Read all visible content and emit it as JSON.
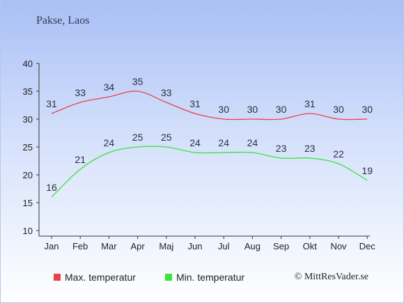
{
  "header": {
    "title": "Pakse, Laos"
  },
  "footer": {
    "copyright": "© MittResVader.se"
  },
  "chart_data": {
    "type": "line",
    "categories": [
      "Jan",
      "Feb",
      "Mar",
      "Apr",
      "Maj",
      "Jun",
      "Jul",
      "Aug",
      "Sep",
      "Okt",
      "Nov",
      "Dec"
    ],
    "ylim": [
      10,
      40
    ],
    "yticks": [
      10,
      15,
      20,
      25,
      30,
      35,
      40
    ],
    "grid": false,
    "legend_position": "bottom",
    "series": [
      {
        "name": "Max. temperatur",
        "color": "#e8434a",
        "values": [
          31,
          33,
          34,
          35,
          33,
          31,
          30,
          30,
          30,
          31,
          30,
          30
        ]
      },
      {
        "name": "Min. temperatur",
        "color": "#39e33a",
        "values": [
          16,
          21,
          24,
          25,
          25,
          24,
          24,
          24,
          23,
          23,
          22,
          19
        ]
      }
    ]
  }
}
